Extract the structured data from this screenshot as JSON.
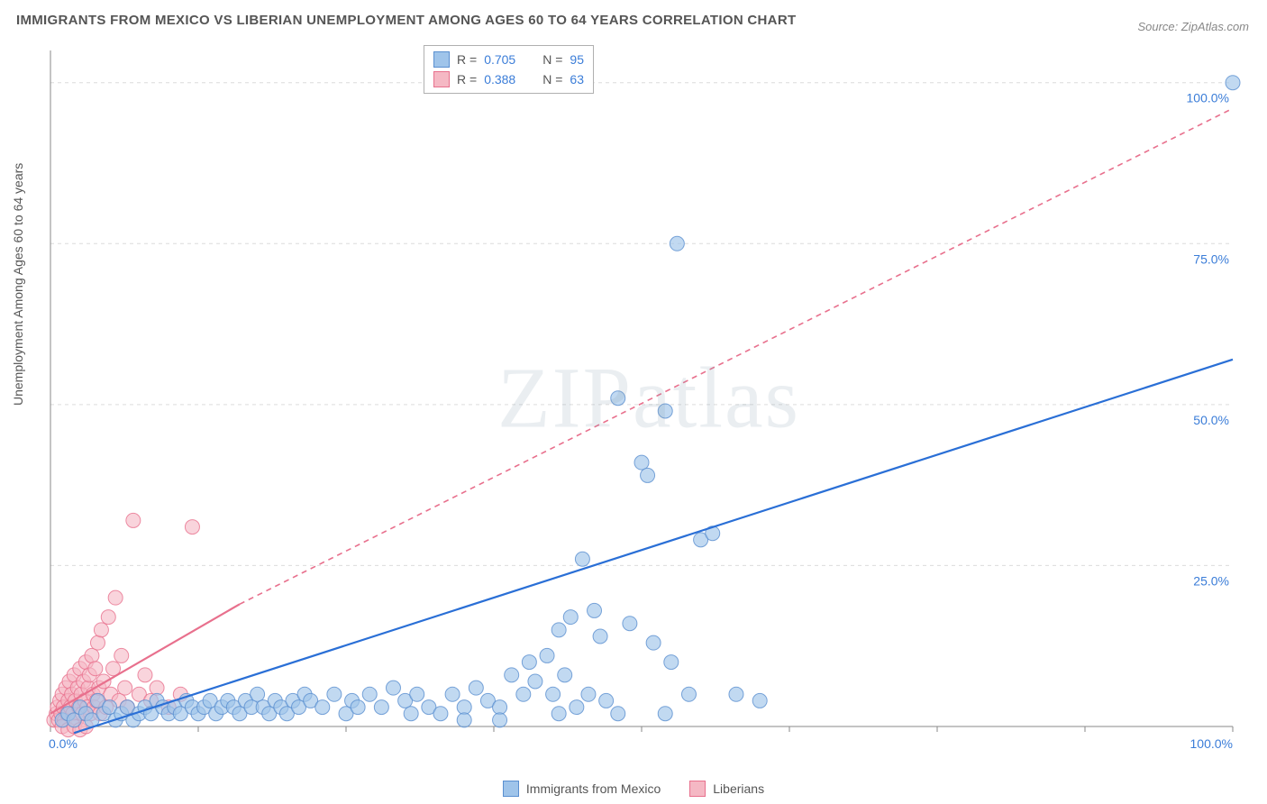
{
  "title": "IMMIGRANTS FROM MEXICO VS LIBERIAN UNEMPLOYMENT AMONG AGES 60 TO 64 YEARS CORRELATION CHART",
  "source": "Source: ZipAtlas.com",
  "ylabel": "Unemployment Among Ages 60 to 64 years",
  "watermark": "ZIPatlas",
  "chart": {
    "type": "scatter",
    "xlim": [
      0,
      100
    ],
    "ylim": [
      0,
      105
    ],
    "background_color": "#ffffff",
    "grid_color": "#dcdcdc",
    "grid_dash": "4,4",
    "axis_color": "#888888",
    "tick_color": "#888888",
    "y_gridlines": [
      25,
      50,
      75,
      100
    ],
    "y_tick_labels": [
      "25.0%",
      "50.0%",
      "75.0%",
      "100.0%"
    ],
    "x_ticks": [
      0,
      12.5,
      25,
      37.5,
      50,
      62.5,
      75,
      87.5,
      100
    ],
    "x_tick_labels_shown": {
      "0": "0.0%",
      "100": "100.0%"
    },
    "series": [
      {
        "name": "Immigrants from Mexico",
        "marker_fill": "#9fc4ea",
        "marker_stroke": "#5a8fd0",
        "marker_opacity": 0.65,
        "marker_radius": 8,
        "trend_color": "#2a6fd6",
        "trend_width": 2.2,
        "trend_dash": "none",
        "trend_extrap_dash": "none",
        "R": "0.705",
        "N": "95",
        "trend": {
          "x1": 2,
          "y1": -1,
          "x2": 100,
          "y2": 57
        },
        "points": [
          [
            1,
            1
          ],
          [
            1.5,
            2
          ],
          [
            2,
            1
          ],
          [
            2.5,
            3
          ],
          [
            3,
            2
          ],
          [
            3.5,
            1
          ],
          [
            4,
            4
          ],
          [
            4.5,
            2
          ],
          [
            5,
            3
          ],
          [
            5.5,
            1
          ],
          [
            6,
            2
          ],
          [
            6.5,
            3
          ],
          [
            7,
            1
          ],
          [
            7.5,
            2
          ],
          [
            8,
            3
          ],
          [
            8.5,
            2
          ],
          [
            9,
            4
          ],
          [
            9.5,
            3
          ],
          [
            10,
            2
          ],
          [
            10.5,
            3
          ],
          [
            11,
            2
          ],
          [
            11.5,
            4
          ],
          [
            12,
            3
          ],
          [
            12.5,
            2
          ],
          [
            13,
            3
          ],
          [
            13.5,
            4
          ],
          [
            14,
            2
          ],
          [
            14.5,
            3
          ],
          [
            15,
            4
          ],
          [
            15.5,
            3
          ],
          [
            16,
            2
          ],
          [
            16.5,
            4
          ],
          [
            17,
            3
          ],
          [
            17.5,
            5
          ],
          [
            18,
            3
          ],
          [
            18.5,
            2
          ],
          [
            19,
            4
          ],
          [
            19.5,
            3
          ],
          [
            20,
            2
          ],
          [
            20.5,
            4
          ],
          [
            21,
            3
          ],
          [
            21.5,
            5
          ],
          [
            22,
            4
          ],
          [
            23,
            3
          ],
          [
            24,
            5
          ],
          [
            25,
            2
          ],
          [
            25.5,
            4
          ],
          [
            26,
            3
          ],
          [
            27,
            5
          ],
          [
            28,
            3
          ],
          [
            29,
            6
          ],
          [
            30,
            4
          ],
          [
            30.5,
            2
          ],
          [
            31,
            5
          ],
          [
            32,
            3
          ],
          [
            33,
            2
          ],
          [
            34,
            5
          ],
          [
            35,
            3
          ],
          [
            36,
            6
          ],
          [
            37,
            4
          ],
          [
            38,
            3
          ],
          [
            39,
            8
          ],
          [
            40,
            5
          ],
          [
            40.5,
            10
          ],
          [
            41,
            7
          ],
          [
            42,
            11
          ],
          [
            42.5,
            5
          ],
          [
            43,
            15
          ],
          [
            43.5,
            8
          ],
          [
            44,
            17
          ],
          [
            44.5,
            3
          ],
          [
            45,
            26
          ],
          [
            45.5,
            5
          ],
          [
            46,
            18
          ],
          [
            46.5,
            14
          ],
          [
            47,
            4
          ],
          [
            48,
            51
          ],
          [
            49,
            16
          ],
          [
            50,
            41
          ],
          [
            50.5,
            39
          ],
          [
            51,
            13
          ],
          [
            52,
            49
          ],
          [
            52.5,
            10
          ],
          [
            53,
            75
          ],
          [
            54,
            5
          ],
          [
            55,
            29
          ],
          [
            56,
            30
          ],
          [
            58,
            5
          ],
          [
            60,
            4
          ],
          [
            48,
            2
          ],
          [
            43,
            2
          ],
          [
            38,
            1
          ],
          [
            35,
            1
          ],
          [
            52,
            2
          ],
          [
            100,
            100
          ]
        ]
      },
      {
        "name": "Liberians",
        "marker_fill": "#f5b8c4",
        "marker_stroke": "#e8708d",
        "marker_opacity": 0.6,
        "marker_radius": 8,
        "trend_color": "#e8708d",
        "trend_width": 2.2,
        "trend_dash": "none",
        "trend_extrap_dash": "6,5",
        "R": "0.388",
        "N": "63",
        "trend_solid": {
          "x1": 0,
          "y1": 2,
          "x2": 16,
          "y2": 19
        },
        "trend_dashed": {
          "x1": 16,
          "y1": 19,
          "x2": 100,
          "y2": 96
        },
        "points": [
          [
            0.3,
            1
          ],
          [
            0.5,
            2
          ],
          [
            0.6,
            3
          ],
          [
            0.7,
            1
          ],
          [
            0.8,
            4
          ],
          [
            0.9,
            2
          ],
          [
            1,
            5
          ],
          [
            1.1,
            3
          ],
          [
            1.2,
            1
          ],
          [
            1.3,
            6
          ],
          [
            1.4,
            2
          ],
          [
            1.5,
            4
          ],
          [
            1.6,
            7
          ],
          [
            1.7,
            3
          ],
          [
            1.8,
            5
          ],
          [
            1.9,
            2
          ],
          [
            2,
            8
          ],
          [
            2.1,
            4
          ],
          [
            2.2,
            1
          ],
          [
            2.3,
            6
          ],
          [
            2.4,
            3
          ],
          [
            2.5,
            9
          ],
          [
            2.6,
            5
          ],
          [
            2.7,
            2
          ],
          [
            2.8,
            7
          ],
          [
            2.9,
            4
          ],
          [
            3,
            10
          ],
          [
            3.1,
            3
          ],
          [
            3.2,
            6
          ],
          [
            3.3,
            8
          ],
          [
            3.4,
            2
          ],
          [
            3.5,
            11
          ],
          [
            3.6,
            5
          ],
          [
            3.7,
            3
          ],
          [
            3.8,
            9
          ],
          [
            3.9,
            4
          ],
          [
            4,
            13
          ],
          [
            4.1,
            6
          ],
          [
            4.2,
            2
          ],
          [
            4.3,
            15
          ],
          [
            4.5,
            7
          ],
          [
            4.7,
            3
          ],
          [
            4.9,
            17
          ],
          [
            5.1,
            5
          ],
          [
            5.3,
            9
          ],
          [
            5.5,
            20
          ],
          [
            5.8,
            4
          ],
          [
            6,
            11
          ],
          [
            6.3,
            6
          ],
          [
            6.5,
            3
          ],
          [
            7,
            32
          ],
          [
            7.5,
            5
          ],
          [
            8,
            8
          ],
          [
            8.5,
            4
          ],
          [
            9,
            6
          ],
          [
            10,
            3
          ],
          [
            11,
            5
          ],
          [
            12,
            31
          ],
          [
            1,
            0
          ],
          [
            1.5,
            -0.5
          ],
          [
            2,
            0
          ],
          [
            2.5,
            -0.5
          ],
          [
            3,
            0
          ]
        ]
      }
    ]
  },
  "legend_top": {
    "rows": [
      {
        "swatch_fill": "#9fc4ea",
        "swatch_stroke": "#5a8fd0",
        "r_label": "R =",
        "r_val": "0.705",
        "n_label": "N =",
        "n_val": "95"
      },
      {
        "swatch_fill": "#f5b8c4",
        "swatch_stroke": "#e8708d",
        "r_label": "R =",
        "r_val": "0.388",
        "n_label": "N =",
        "n_val": "63"
      }
    ]
  },
  "legend_bottom": {
    "items": [
      {
        "swatch_fill": "#9fc4ea",
        "swatch_stroke": "#5a8fd0",
        "label": "Immigrants from Mexico"
      },
      {
        "swatch_fill": "#f5b8c4",
        "swatch_stroke": "#e8708d",
        "label": "Liberians"
      }
    ]
  }
}
